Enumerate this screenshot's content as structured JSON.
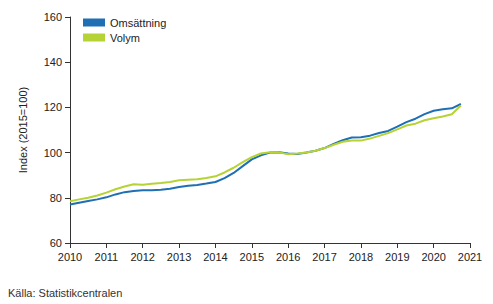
{
  "chart_data": {
    "type": "line",
    "y_label": "Index (2015=100)",
    "annotations": [
      "Källa: Statistikcentralen"
    ],
    "x": [
      2010,
      2010.25,
      2010.5,
      2010.75,
      2011,
      2011.25,
      2011.5,
      2011.75,
      2012,
      2012.25,
      2012.5,
      2012.75,
      2013,
      2013.25,
      2013.5,
      2013.75,
      2014,
      2014.25,
      2014.5,
      2014.75,
      2015,
      2015.25,
      2015.5,
      2015.75,
      2016,
      2016.25,
      2016.5,
      2016.75,
      2017,
      2017.25,
      2017.5,
      2017.75,
      2018,
      2018.25,
      2018.5,
      2018.75,
      2019,
      2019.25,
      2019.5,
      2019.75,
      2020,
      2020.25,
      2020.5,
      2020.75
    ],
    "series": [
      {
        "name": "Omsättning",
        "color": "#1f6fb5",
        "values": [
          77,
          77.8,
          78.6,
          79.3,
          80.2,
          81.5,
          82.5,
          83,
          83.3,
          83.3,
          83.6,
          84,
          84.8,
          85.3,
          85.7,
          86.3,
          87,
          88.7,
          91,
          94,
          97,
          98.8,
          100,
          100.2,
          99.6,
          99.4,
          100,
          100.8,
          102,
          103.8,
          105.5,
          106.7,
          106.8,
          107.5,
          108.7,
          109.6,
          111.5,
          113.5,
          115,
          117,
          118.5,
          119.2,
          119.6,
          121.5
        ]
      },
      {
        "name": "Volym",
        "color": "#b5d334",
        "values": [
          78.5,
          79.3,
          80,
          81,
          82.3,
          83.8,
          85,
          86,
          85.8,
          86.2,
          86.5,
          87,
          87.8,
          88,
          88.2,
          88.8,
          89.5,
          91.2,
          93.3,
          95.8,
          98,
          99.6,
          100.2,
          100.1,
          99.3,
          99.6,
          100,
          100.8,
          102,
          103.5,
          104.8,
          105.4,
          105.3,
          106.2,
          107.4,
          108.6,
          110.3,
          112,
          112.8,
          114.3,
          115.2,
          116,
          117,
          120.8
        ]
      }
    ],
    "xlim": [
      2010,
      2021
    ],
    "xticks": [
      2010,
      2011,
      2012,
      2013,
      2014,
      2015,
      2016,
      2017,
      2018,
      2019,
      2020,
      2021
    ],
    "ylim": [
      60,
      160
    ],
    "yticks": [
      60,
      80,
      100,
      120,
      140,
      160
    ],
    "grid": false,
    "legend": "upper left"
  }
}
